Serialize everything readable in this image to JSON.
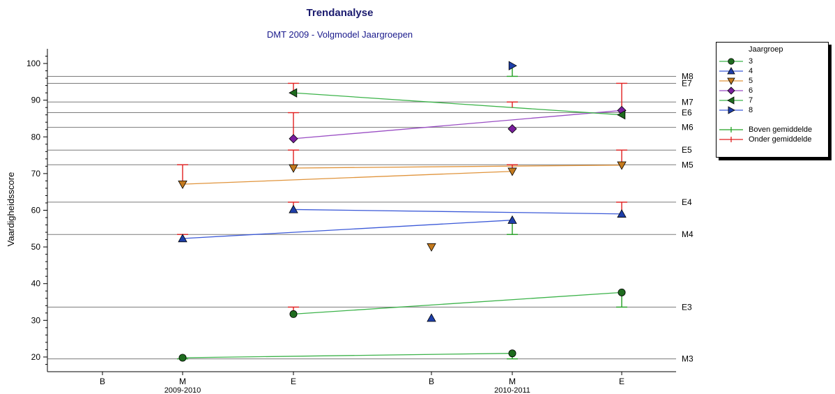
{
  "chart_data": {
    "type": "line",
    "title": "Trendanalyse",
    "subtitle": "DMT 2009 - Volgmodel Jaargroepen",
    "ylabel": "Vaardigheidsscore",
    "ylim": [
      16,
      104
    ],
    "yticks": [
      20,
      30,
      40,
      50,
      60,
      70,
      80,
      90,
      100
    ],
    "categories": [
      {
        "label": "B",
        "year": ""
      },
      {
        "label": "M",
        "year": "2009-2010"
      },
      {
        "label": "E",
        "year": ""
      },
      {
        "label": "B",
        "year": ""
      },
      {
        "label": "M",
        "year": "2010-2011"
      },
      {
        "label": "E",
        "year": ""
      }
    ],
    "reference_lines": [
      {
        "label": "M8",
        "value": 96.5
      },
      {
        "label": "E7",
        "value": 94.6
      },
      {
        "label": "M7",
        "value": 89.5
      },
      {
        "label": "E6",
        "value": 86.6
      },
      {
        "label": "M6",
        "value": 82.6
      },
      {
        "label": "E5",
        "value": 76.4
      },
      {
        "label": "M5",
        "value": 72.4
      },
      {
        "label": "E4",
        "value": 62.2
      },
      {
        "label": "M4",
        "value": 53.4
      },
      {
        "label": "E3",
        "value": 33.6
      },
      {
        "label": "M3",
        "value": 19.5
      }
    ],
    "legend_title": "Jaargroep",
    "series": [
      {
        "name": "3",
        "marker": "circle",
        "color": "#1e6b1e",
        "line_color": "#3cb34a",
        "segments": [
          [
            1,
            19.8,
            4,
            21.0
          ],
          [
            2,
            31.7,
            5,
            37.6
          ]
        ],
        "isolated": [],
        "errors": [
          {
            "x": 1,
            "y": 19.8,
            "to": 19.5
          },
          {
            "x": 2,
            "y": 31.7,
            "to": 33.6
          },
          {
            "x": 4,
            "y": 21.0,
            "to": 19.5
          },
          {
            "x": 5,
            "y": 37.6,
            "to": 33.6
          }
        ]
      },
      {
        "name": "4",
        "marker": "triangle-up",
        "color": "#1e3ea8",
        "line_color": "#3c5ad8",
        "segments": [
          [
            1,
            52.3,
            4,
            57.3
          ],
          [
            2,
            60.2,
            5,
            59.0
          ]
        ],
        "isolated": [
          [
            3,
            30.6
          ]
        ],
        "errors": [
          {
            "x": 1,
            "y": 52.3,
            "to": 53.4
          },
          {
            "x": 2,
            "y": 60.2,
            "to": 62.2
          },
          {
            "x": 4,
            "y": 57.3,
            "to": 53.4
          },
          {
            "x": 5,
            "y": 59.0,
            "to": 62.2
          }
        ]
      },
      {
        "name": "5",
        "marker": "triangle-down",
        "color": "#c47a1e",
        "line_color": "#e0943c",
        "segments": [
          [
            1,
            67.1,
            4,
            70.6
          ],
          [
            2,
            71.5,
            5,
            72.3
          ]
        ],
        "isolated": [
          [
            3,
            50.0
          ]
        ],
        "errors": [
          {
            "x": 1,
            "y": 67.1,
            "to": 72.4
          },
          {
            "x": 2,
            "y": 71.5,
            "to": 76.4
          },
          {
            "x": 4,
            "y": 70.6,
            "to": 72.4
          },
          {
            "x": 5,
            "y": 72.3,
            "to": 76.4
          }
        ]
      },
      {
        "name": "6",
        "marker": "diamond",
        "color": "#7a1e9e",
        "line_color": "#9a4ec4",
        "segments": [
          [
            2,
            79.5,
            5,
            87.2
          ]
        ],
        "isolated": [
          [
            4,
            82.2
          ]
        ],
        "errors": [
          {
            "x": 2,
            "y": 79.5,
            "to": 86.6
          },
          {
            "x": 5,
            "y": 87.2,
            "to": 94.6
          }
        ]
      },
      {
        "name": "7",
        "marker": "triangle-left",
        "color": "#1e6b1e",
        "line_color": "#3cb34a",
        "segments": [
          [
            2,
            92.0,
            5,
            86.0
          ]
        ],
        "isolated": [],
        "errors": [
          {
            "x": 2,
            "y": 92.0,
            "to": 94.6
          },
          {
            "x": 4,
            "y": 88.0,
            "to": 89.5
          }
        ]
      },
      {
        "name": "8",
        "marker": "triangle-right",
        "color": "#1e3ea8",
        "line_color": "#3c5ad8",
        "segments": [],
        "isolated": [
          [
            4,
            99.4
          ]
        ],
        "errors": [
          {
            "x": 4,
            "y": 99.4,
            "to": 96.5
          }
        ]
      }
    ],
    "error_legend": [
      {
        "name": "Boven gemiddelde",
        "color": "#22a022"
      },
      {
        "name": "Onder gemiddelde",
        "color": "#e01e1e"
      }
    ]
  }
}
